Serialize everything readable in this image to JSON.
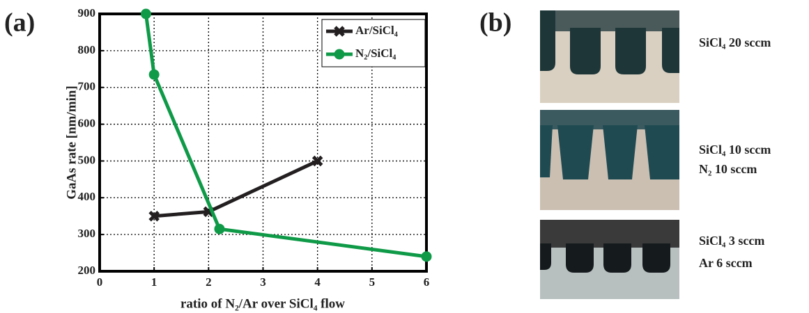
{
  "labels": [
    "(a)",
    "(b)"
  ],
  "captions": [
    [
      "SiCl₄ 20 sccm"
    ],
    [
      "SiCl₄ 10 sccm",
      "N₂ 10 sccm"
    ],
    [
      "SiCl₄ 3 sccm",
      "Ar 6 sccm"
    ]
  ],
  "chart_data": {
    "type": "line",
    "x_label": "ratio of N₂/Ar over SiCl₄ flow",
    "y_label": "GaAs rate [nm/min]",
    "xlim": [
      0,
      6
    ],
    "xticks": [
      0,
      1,
      2,
      3,
      4,
      5,
      6
    ],
    "ylim": [
      200,
      900
    ],
    "yticks": [
      200,
      300,
      400,
      500,
      600,
      700,
      800,
      900
    ],
    "grid": true,
    "legend": "upper right",
    "series": [
      {
        "name": "Ar/SiCl₄",
        "color": "#231f20",
        "marker": "x",
        "x": [
          1,
          2,
          4
        ],
        "values": [
          350,
          362,
          500
        ]
      },
      {
        "name": "N₂/SiCl₄",
        "color": "#0f9a48",
        "marker": "o",
        "x": [
          0.85,
          1,
          2.2,
          6
        ],
        "values": [
          900,
          735,
          315,
          240
        ]
      }
    ]
  }
}
